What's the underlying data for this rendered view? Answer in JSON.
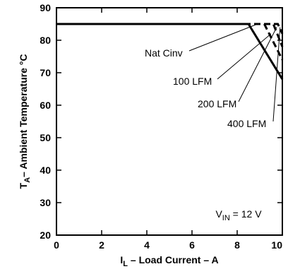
{
  "chart_data": {
    "type": "line",
    "title": "",
    "xlabel": "I",
    "xlabel_sub": "L",
    "xlabel_rest": " – Load Current – A",
    "ylabel": "T",
    "ylabel_sub": "A",
    "ylabel_rest": "– Ambient Temperature °C",
    "xlim": [
      0,
      10
    ],
    "ylim": [
      20,
      90
    ],
    "xticks": [
      0,
      2,
      4,
      6,
      8,
      10
    ],
    "yticks": [
      20,
      30,
      40,
      50,
      60,
      70,
      80,
      90
    ],
    "grid": false,
    "series": [
      {
        "name": "Nat Cinv",
        "x": [
          0,
          8.5,
          10
        ],
        "y": [
          85,
          85,
          68
        ],
        "style": "solid"
      },
      {
        "name": "100 LFM",
        "x": [
          0,
          9.2,
          10
        ],
        "y": [
          85,
          85,
          74
        ],
        "style": "dashed"
      },
      {
        "name": "200 LFM",
        "x": [
          0,
          9.6,
          10
        ],
        "y": [
          85,
          85,
          78
        ],
        "style": "dashed"
      },
      {
        "name": "400 LFM",
        "x": [
          0,
          9.8,
          10
        ],
        "y": [
          85,
          85,
          82
        ],
        "style": "dashed"
      }
    ],
    "annotations": [
      {
        "text": "Nat Cinv",
        "target": "Nat Cinv"
      },
      {
        "text": "100 LFM",
        "target": "100 LFM"
      },
      {
        "text": "200 LFM",
        "target": "200 LFM"
      },
      {
        "text": "400 LFM",
        "target": "400 LFM"
      }
    ],
    "condition": {
      "main": "V",
      "sub": "IN",
      "rest": " = 12 V"
    },
    "colors": {
      "line": "#000000",
      "background": "#ffffff"
    }
  }
}
